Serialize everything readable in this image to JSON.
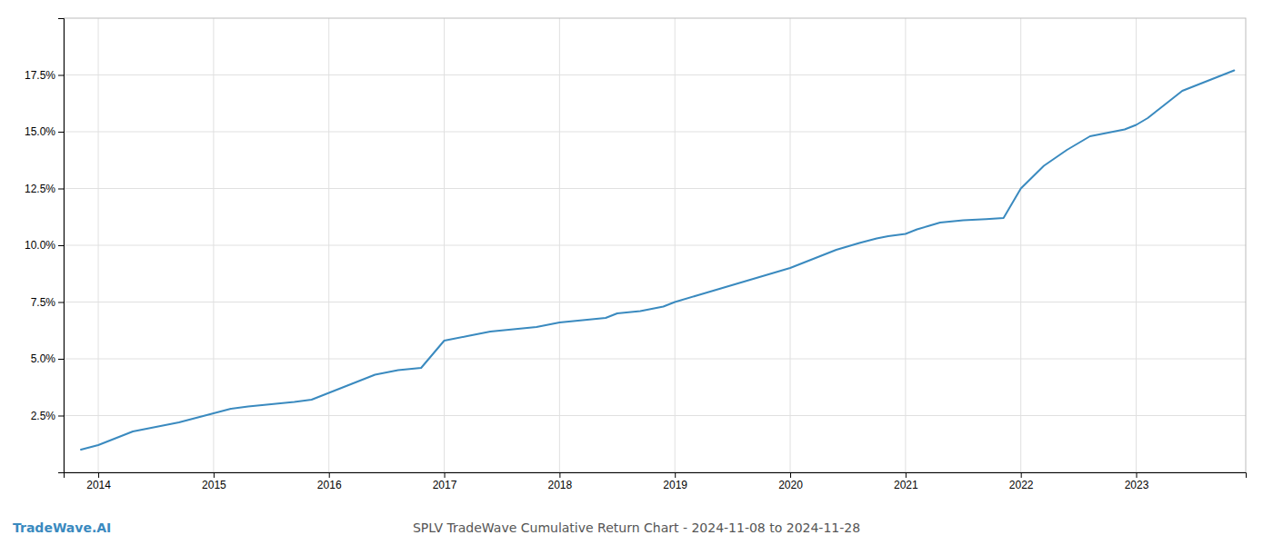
{
  "chart_data": {
    "type": "line",
    "title": "SPLV TradeWave Cumulative Return Chart - 2024-11-08 to 2024-11-28",
    "annotations": [
      "TradeWave.AI"
    ],
    "color": "#3a8abf",
    "grid": true,
    "x": [
      2013.85,
      2014.0,
      2014.1,
      2014.2,
      2014.3,
      2014.5,
      2014.7,
      2014.85,
      2015.0,
      2015.15,
      2015.3,
      2015.5,
      2015.7,
      2015.85,
      2016.0,
      2016.2,
      2016.4,
      2016.6,
      2016.8,
      2017.0,
      2017.2,
      2017.4,
      2017.6,
      2017.8,
      2017.9,
      2018.0,
      2018.2,
      2018.4,
      2018.5,
      2018.7,
      2018.9,
      2019.0,
      2019.2,
      2019.4,
      2019.6,
      2019.8,
      2020.0,
      2020.2,
      2020.4,
      2020.6,
      2020.75,
      2020.85,
      2021.0,
      2021.1,
      2021.2,
      2021.3,
      2021.5,
      2021.7,
      2021.85,
      2022.0,
      2022.2,
      2022.4,
      2022.6,
      2022.8,
      2022.9,
      2023.0,
      2023.1,
      2023.2,
      2023.3,
      2023.4,
      2023.5,
      2023.6,
      2023.7,
      2023.8,
      2023.85
    ],
    "values": [
      1.0,
      1.2,
      1.4,
      1.6,
      1.8,
      2.0,
      2.2,
      2.4,
      2.6,
      2.8,
      2.9,
      3.0,
      3.1,
      3.2,
      3.5,
      3.9,
      4.3,
      4.5,
      4.6,
      5.8,
      6.0,
      6.2,
      6.3,
      6.4,
      6.5,
      6.6,
      6.7,
      6.8,
      7.0,
      7.1,
      7.3,
      7.5,
      7.8,
      8.1,
      8.4,
      8.7,
      9.0,
      9.4,
      9.8,
      10.1,
      10.3,
      10.4,
      10.5,
      10.7,
      10.85,
      11.0,
      11.1,
      11.15,
      11.2,
      12.5,
      13.5,
      14.2,
      14.8,
      15.0,
      15.1,
      15.3,
      15.6,
      16.0,
      16.4,
      16.8,
      17.0,
      17.2,
      17.4,
      17.6,
      17.7
    ],
    "xlim": [
      2013.7,
      2023.95
    ],
    "xticks": [
      2014,
      2015,
      2016,
      2017,
      2018,
      2019,
      2020,
      2021,
      2022,
      2023
    ],
    "ylim": [
      0,
      20
    ],
    "yticks": [
      {
        "value": 2.5,
        "label": "2.5%"
      },
      {
        "value": 5.0,
        "label": "5.0%"
      },
      {
        "value": 7.5,
        "label": "7.5%"
      },
      {
        "value": 10.0,
        "label": "10.0%"
      },
      {
        "value": 12.5,
        "label": "12.5%"
      },
      {
        "value": 15.0,
        "label": "15.0%"
      },
      {
        "value": 17.5,
        "label": "17.5%"
      }
    ]
  }
}
